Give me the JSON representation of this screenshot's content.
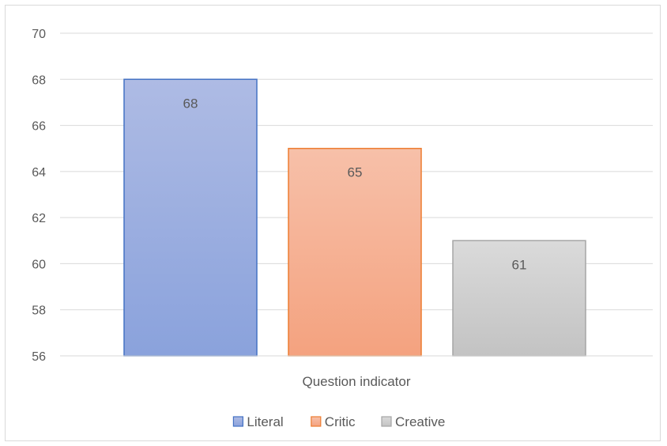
{
  "chart_data": {
    "type": "bar",
    "title": "",
    "xlabel": "Question indicator",
    "ylabel": "",
    "categories": [
      "Question indicator"
    ],
    "series": [
      {
        "name": "Literal",
        "values": [
          68
        ],
        "color": "#4472c4",
        "fill_top": "#aebbe4",
        "fill_bottom": "#8aa2dc"
      },
      {
        "name": "Critic",
        "values": [
          65
        ],
        "color": "#ed7d31",
        "fill_top": "#f7c0a9",
        "fill_bottom": "#f4a27f"
      },
      {
        "name": "Creative",
        "values": [
          61
        ],
        "color": "#a5a5a5",
        "fill_top": "#dadada",
        "fill_bottom": "#c3c3c3"
      }
    ],
    "ylim": [
      56,
      70
    ],
    "yticks": [
      56,
      58,
      60,
      62,
      64,
      66,
      68,
      70
    ],
    "grid": true,
    "legend_position": "bottom",
    "data_labels": true
  }
}
